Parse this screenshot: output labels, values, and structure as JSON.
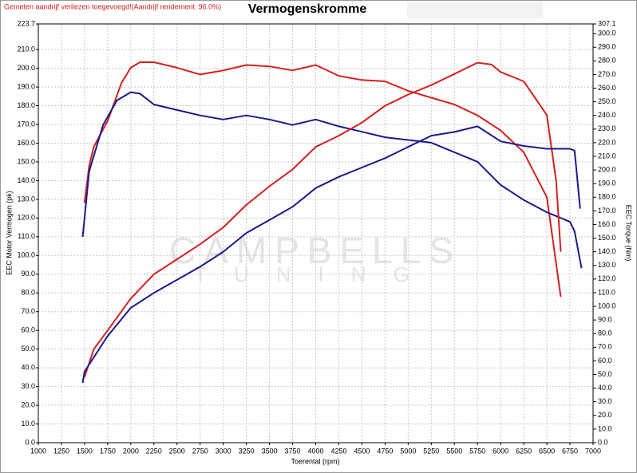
{
  "chart_data": {
    "type": "line",
    "title": "Vermogenskromme",
    "annotation": "Gemeten aandrijf verliezen toegevoegd!(Aandrijf rendement: 96.0%)",
    "xlabel": "Toerental (rpm)",
    "ylabel": "EEC Motor Vermogen (pk)",
    "y2label": "EEC Torque (Nm)",
    "watermark": [
      "CAMPBELLS",
      "TUNING"
    ],
    "grid": true,
    "xlim": [
      1000,
      7000
    ],
    "xticks": [
      1000,
      1250,
      1500,
      1750,
      2000,
      2250,
      2500,
      2750,
      3000,
      3250,
      3500,
      3750,
      4000,
      4250,
      4500,
      4750,
      5000,
      5250,
      5500,
      5750,
      6000,
      6250,
      6500,
      6750,
      7000
    ],
    "ylim": [
      0,
      223.7
    ],
    "yticks": [
      {
        "value": 0,
        "label": "0.0"
      },
      {
        "value": 10,
        "label": "10.0"
      },
      {
        "value": 20,
        "label": "20.0"
      },
      {
        "value": 30,
        "label": "30.0"
      },
      {
        "value": 40,
        "label": "40.0"
      },
      {
        "value": 50,
        "label": "50.0"
      },
      {
        "value": 60,
        "label": "60.0"
      },
      {
        "value": 70,
        "label": "70.0"
      },
      {
        "value": 80,
        "label": "80.0"
      },
      {
        "value": 90,
        "label": "90.0"
      },
      {
        "value": 100,
        "label": "100.0"
      },
      {
        "value": 110,
        "label": "110.0"
      },
      {
        "value": 120,
        "label": "120.0"
      },
      {
        "value": 130,
        "label": "130.0"
      },
      {
        "value": 140,
        "label": "140.0"
      },
      {
        "value": 150,
        "label": "150.0"
      },
      {
        "value": 160,
        "label": "160.0"
      },
      {
        "value": 170,
        "label": "170.0"
      },
      {
        "value": 180,
        "label": "180.0"
      },
      {
        "value": 190,
        "label": "190.0"
      },
      {
        "value": 200,
        "label": "200.0"
      },
      {
        "value": 210,
        "label": "210.0"
      },
      223.7
    ],
    "y2lim": [
      0,
      307.1
    ],
    "y2ticks": [
      {
        "value": 0,
        "label": "0.0"
      },
      {
        "value": 10,
        "label": "10.0"
      },
      {
        "value": 20,
        "label": "20.0"
      },
      {
        "value": 30,
        "label": "30.0"
      },
      {
        "value": 40,
        "label": "40.0"
      },
      {
        "value": 50,
        "label": "50.0"
      },
      {
        "value": 60,
        "label": "60.0"
      },
      {
        "value": 70,
        "label": "70.0"
      },
      {
        "value": 80,
        "label": "80.0"
      },
      {
        "value": 90,
        "label": "90.0"
      },
      {
        "value": 100,
        "label": "100.0"
      },
      {
        "value": 110,
        "label": "110.0"
      },
      {
        "value": 120,
        "label": "120.0"
      },
      {
        "value": 130,
        "label": "130.0"
      },
      {
        "value": 140,
        "label": "140.0"
      },
      {
        "value": 150,
        "label": "150.0"
      },
      {
        "value": 160,
        "label": "160.0"
      },
      {
        "value": 170,
        "label": "170.0"
      },
      {
        "value": 180,
        "label": "180.0"
      },
      {
        "value": 190,
        "label": "190.0"
      },
      {
        "value": 200,
        "label": "200.0"
      },
      {
        "value": 210,
        "label": "210.0"
      },
      {
        "value": 220,
        "label": "220.0"
      },
      {
        "value": 230,
        "label": "230.0"
      },
      {
        "value": 240,
        "label": "240.0"
      },
      {
        "value": 250,
        "label": "250.0"
      },
      {
        "value": 260,
        "label": "260.0"
      },
      {
        "value": 270,
        "label": "270.0"
      },
      {
        "value": 280,
        "label": "280.0"
      },
      {
        "value": 290,
        "label": "290.0"
      },
      {
        "value": 300,
        "label": "300.0"
      },
      307.1
    ],
    "series": [
      {
        "color": "#d42020",
        "axis": "y2",
        "x": [
          1500,
          1550,
          1600,
          1750,
          1900,
          2000,
          2100,
          2250,
          2500,
          2750,
          3000,
          3250,
          3500,
          3750,
          4000,
          4250,
          4500,
          4750,
          5000,
          5250,
          5500,
          5750,
          6000,
          6250,
          6500,
          6650
        ],
        "values": [
          176,
          203,
          217,
          236,
          264,
          275,
          279,
          279,
          275,
          270,
          273,
          277,
          276,
          273,
          277,
          269,
          266,
          265,
          258,
          253,
          248,
          240,
          229,
          213,
          180,
          107
        ]
      },
      {
        "color": "#1a1a8c",
        "axis": "y2",
        "x": [
          1480,
          1550,
          1700,
          1850,
          2000,
          2100,
          2250,
          2500,
          2750,
          3000,
          3250,
          3500,
          3750,
          4000,
          4250,
          4500,
          4750,
          5000,
          5250,
          5500,
          5750,
          6000,
          6250,
          6500,
          6750,
          6800,
          6875
        ],
        "values": [
          151,
          199,
          233,
          251,
          257,
          256,
          248,
          244,
          240,
          237,
          240,
          237,
          233,
          237,
          232,
          228,
          224,
          222,
          220,
          213,
          206,
          189,
          178,
          169,
          162,
          155,
          128
        ]
      },
      {
        "color": "#d42020",
        "x": [
          1500,
          1600,
          1750,
          2000,
          2250,
          2500,
          2750,
          3000,
          3250,
          3500,
          3750,
          4000,
          4250,
          4500,
          4750,
          5000,
          5250,
          5500,
          5750,
          5900,
          6000,
          6250,
          6500,
          6600,
          6650
        ],
        "values": [
          35,
          50,
          60,
          77,
          90,
          98,
          106,
          115,
          127,
          137,
          146,
          158,
          164,
          171,
          180,
          186,
          191,
          197,
          203,
          202,
          198,
          193,
          175,
          140,
          102
        ]
      },
      {
        "color": "#1a1a8c",
        "x": [
          1480,
          1500,
          1750,
          2000,
          2250,
          2500,
          2750,
          3000,
          3250,
          3500,
          3750,
          4000,
          4250,
          4500,
          4750,
          5000,
          5250,
          5500,
          5750,
          6000,
          6250,
          6500,
          6750,
          6800,
          6860
        ],
        "values": [
          32,
          38,
          57,
          72,
          80,
          87,
          94,
          102,
          112,
          119,
          126,
          136,
          142,
          147,
          152,
          158,
          164,
          166,
          169,
          161,
          158.5,
          157,
          157,
          156,
          125
        ]
      }
    ]
  }
}
